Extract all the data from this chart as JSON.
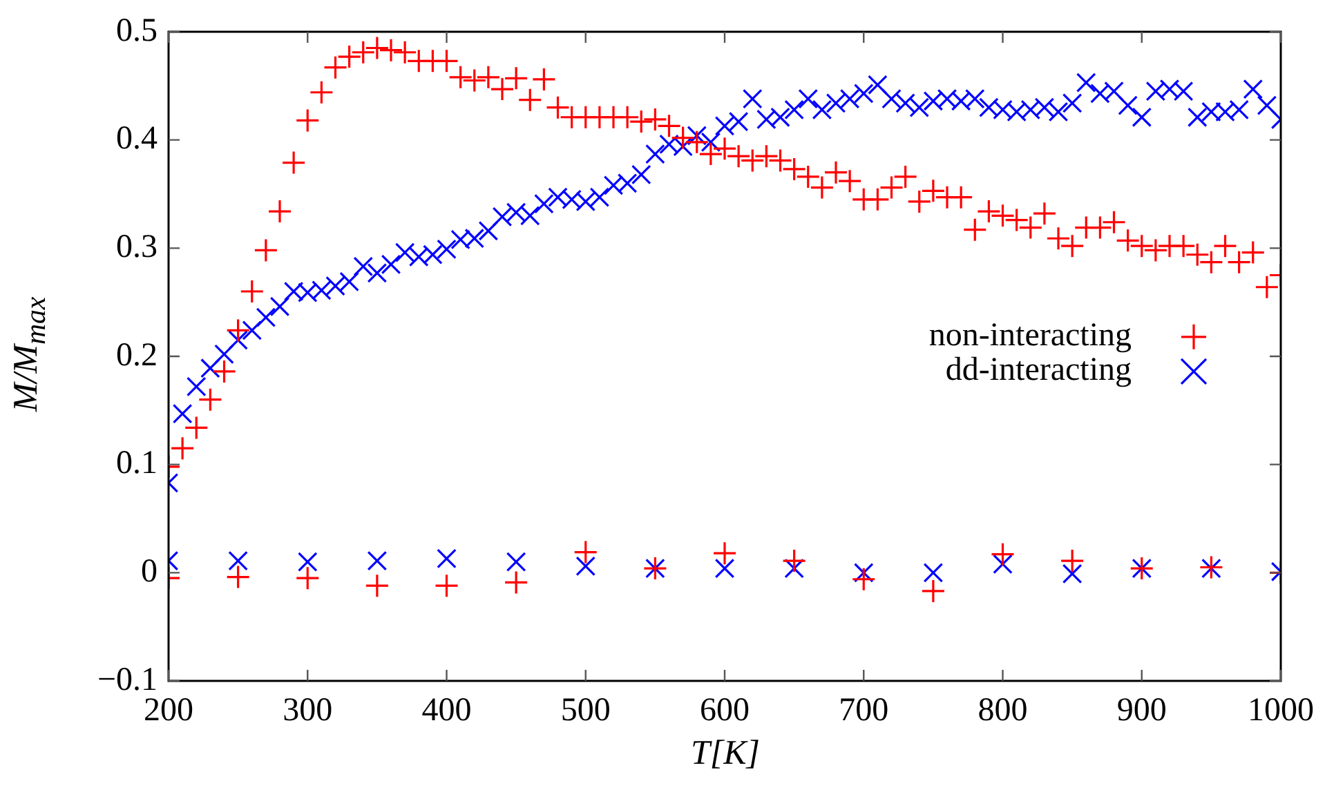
{
  "chart_data": {
    "type": "scatter",
    "xlabel": "T[K]",
    "ylabel": "M/M$_{max}$",
    "xlim": [
      200,
      1000
    ],
    "xticks": [
      200,
      300,
      400,
      500,
      600,
      700,
      800,
      900,
      1000
    ],
    "ylim": [
      -0.1,
      0.5
    ],
    "yticks": [
      {
        "value": -0.1,
        "label": "−0.1"
      },
      0,
      0.1,
      0.2,
      0.3,
      0.4,
      0.5
    ],
    "grid": false,
    "legend": "right",
    "series": [
      {
        "name": "non-interacting",
        "color": "#ff0000",
        "marker": "cross",
        "x": [
          200,
          210,
          220,
          230,
          240,
          250,
          260,
          270,
          280,
          290,
          300,
          310,
          320,
          330,
          340,
          350,
          360,
          370,
          380,
          390,
          400,
          410,
          420,
          430,
          440,
          450,
          460,
          470,
          480,
          490,
          500,
          510,
          520,
          530,
          540,
          550,
          560,
          570,
          580,
          590,
          600,
          610,
          620,
          630,
          640,
          650,
          660,
          670,
          680,
          690,
          700,
          710,
          720,
          730,
          740,
          750,
          760,
          770,
          780,
          790,
          800,
          810,
          820,
          830,
          840,
          850,
          860,
          870,
          880,
          890,
          900,
          910,
          920,
          930,
          940,
          950,
          960,
          970,
          980,
          990,
          1000,
          200,
          250,
          300,
          350,
          400,
          450,
          500,
          550,
          600,
          650,
          700,
          750,
          800,
          850,
          900,
          950,
          1000
        ],
        "values": [
          0.098,
          0.115,
          0.134,
          0.16,
          0.186,
          0.224,
          0.26,
          0.298,
          0.334,
          0.379,
          0.418,
          0.444,
          0.467,
          0.477,
          0.481,
          0.485,
          0.483,
          0.481,
          0.473,
          0.473,
          0.473,
          0.458,
          0.455,
          0.458,
          0.447,
          0.457,
          0.437,
          0.456,
          0.43,
          0.421,
          0.421,
          0.421,
          0.421,
          0.421,
          0.417,
          0.419,
          0.413,
          0.402,
          0.398,
          0.387,
          0.392,
          0.385,
          0.381,
          0.385,
          0.381,
          0.373,
          0.366,
          0.356,
          0.37,
          0.362,
          0.345,
          0.345,
          0.356,
          0.366,
          0.343,
          0.353,
          0.347,
          0.347,
          0.317,
          0.334,
          0.33,
          0.326,
          0.319,
          0.332,
          0.309,
          0.302,
          0.319,
          0.319,
          0.324,
          0.307,
          0.302,
          0.298,
          0.302,
          0.302,
          0.294,
          0.287,
          0.302,
          0.287,
          0.296,
          0.264,
          0.275,
          -0.005,
          -0.004,
          -0.005,
          -0.012,
          -0.012,
          -0.009,
          0.019,
          0.004,
          0.018,
          0.011,
          -0.006,
          -0.017,
          0.017,
          0.011,
          0.004,
          0.005,
          0.0
        ]
      },
      {
        "name": "dd-interacting",
        "color": "#0000ff",
        "marker": "x",
        "x": [
          200,
          210,
          220,
          230,
          240,
          250,
          260,
          270,
          280,
          290,
          300,
          310,
          320,
          330,
          340,
          350,
          360,
          370,
          380,
          390,
          400,
          410,
          420,
          430,
          440,
          450,
          460,
          470,
          480,
          490,
          500,
          510,
          520,
          530,
          540,
          550,
          560,
          570,
          580,
          590,
          600,
          610,
          620,
          630,
          640,
          650,
          660,
          670,
          680,
          690,
          700,
          710,
          720,
          730,
          740,
          750,
          760,
          770,
          780,
          790,
          800,
          810,
          820,
          830,
          840,
          850,
          860,
          870,
          880,
          890,
          900,
          910,
          920,
          930,
          940,
          950,
          960,
          970,
          980,
          990,
          1000,
          200,
          250,
          300,
          350,
          400,
          450,
          500,
          550,
          600,
          650,
          700,
          750,
          800,
          850,
          900,
          950,
          1000
        ],
        "values": [
          0.083,
          0.147,
          0.172,
          0.189,
          0.202,
          0.215,
          0.224,
          0.236,
          0.246,
          0.26,
          0.259,
          0.261,
          0.265,
          0.269,
          0.283,
          0.277,
          0.285,
          0.296,
          0.292,
          0.294,
          0.299,
          0.308,
          0.309,
          0.316,
          0.329,
          0.333,
          0.33,
          0.341,
          0.347,
          0.345,
          0.343,
          0.347,
          0.358,
          0.36,
          0.368,
          0.387,
          0.396,
          0.394,
          0.404,
          0.398,
          0.413,
          0.417,
          0.438,
          0.419,
          0.421,
          0.428,
          0.438,
          0.428,
          0.434,
          0.438,
          0.443,
          0.451,
          0.438,
          0.434,
          0.43,
          0.436,
          0.438,
          0.436,
          0.438,
          0.43,
          0.428,
          0.426,
          0.428,
          0.43,
          0.426,
          0.434,
          0.453,
          0.443,
          0.445,
          0.432,
          0.421,
          0.445,
          0.447,
          0.445,
          0.421,
          0.426,
          0.426,
          0.428,
          0.447,
          0.432,
          0.419,
          0.011,
          0.011,
          0.01,
          0.011,
          0.013,
          0.01,
          0.006,
          0.004,
          0.004,
          0.004,
          0.0,
          0.0,
          0.008,
          -0.001,
          0.004,
          0.004,
          0.001
        ]
      }
    ]
  }
}
